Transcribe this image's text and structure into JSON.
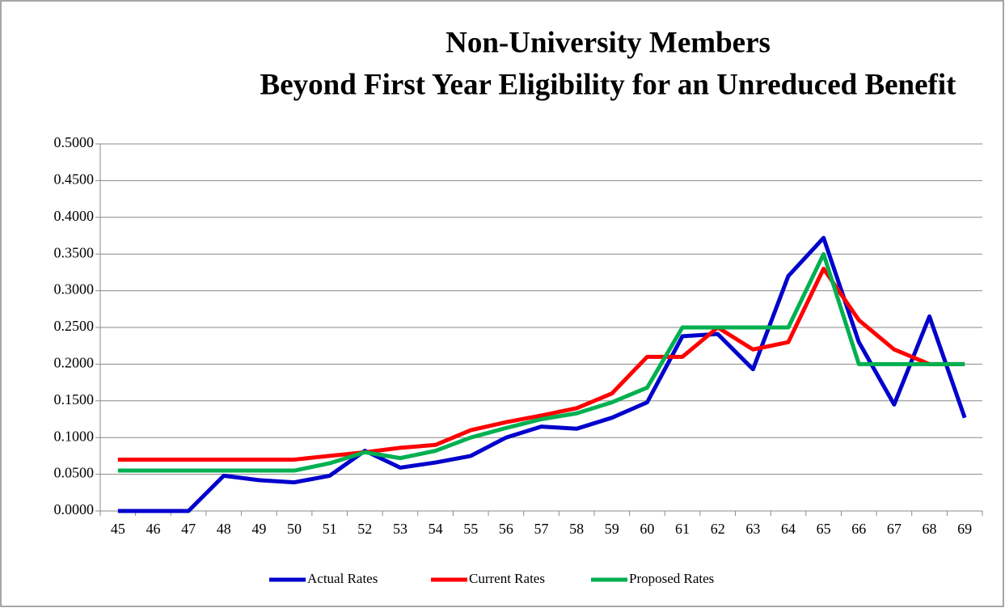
{
  "chart_data": {
    "type": "line",
    "title": [
      "Non-University Members",
      "Beyond First Year Eligibility for an Unreduced Benefit"
    ],
    "categories": [
      "45",
      "46",
      "47",
      "48",
      "49",
      "50",
      "51",
      "52",
      "53",
      "54",
      "55",
      "56",
      "57",
      "58",
      "59",
      "60",
      "61",
      "62",
      "63",
      "64",
      "65",
      "66",
      "67",
      "68",
      "69"
    ],
    "series": [
      {
        "name": "Actual Rates",
        "color": "#0000cc",
        "values": [
          0,
          0,
          0,
          0.048,
          0.042,
          0.039,
          0.048,
          0.082,
          0.059,
          0.066,
          0.075,
          0.1,
          0.115,
          0.112,
          0.127,
          0.148,
          0.238,
          0.241,
          0.193,
          0.32,
          0.372,
          0.23,
          0.145,
          0.265,
          0.127
        ]
      },
      {
        "name": "Current Rates",
        "color": "#ff0000",
        "values": [
          0.07,
          0.07,
          0.07,
          0.07,
          0.07,
          0.07,
          0.075,
          0.08,
          0.086,
          0.09,
          0.11,
          0.121,
          0.13,
          0.14,
          0.16,
          0.21,
          0.21,
          0.25,
          0.22,
          0.23,
          0.33,
          0.26,
          0.22,
          0.2,
          0.2
        ]
      },
      {
        "name": "Proposed Rates",
        "color": "#00b050",
        "values": [
          0.055,
          0.055,
          0.055,
          0.055,
          0.055,
          0.055,
          0.065,
          0.08,
          0.072,
          0.082,
          0.1,
          0.113,
          0.125,
          0.133,
          0.148,
          0.168,
          0.25,
          0.25,
          0.25,
          0.25,
          0.35,
          0.2,
          0.2,
          0.2,
          0.2
        ]
      }
    ],
    "ylim": [
      0,
      0.5
    ],
    "yticks": [
      {
        "value": 0,
        "label": "0.0000"
      },
      {
        "value": 0.05,
        "label": "0.0500"
      },
      {
        "value": 0.1,
        "label": "0.1000"
      },
      {
        "value": 0.15,
        "label": "0.1500"
      },
      {
        "value": 0.2,
        "label": "0.2000"
      },
      {
        "value": 0.25,
        "label": "0.2500"
      },
      {
        "value": 0.3,
        "label": "0.3000"
      },
      {
        "value": 0.35,
        "label": "0.3500"
      },
      {
        "value": 0.4,
        "label": "0.4000"
      },
      {
        "value": 0.45,
        "label": "0.4500"
      },
      {
        "value": 0.5,
        "label": "0.5000"
      }
    ],
    "grid": true,
    "legend": "bottom"
  }
}
